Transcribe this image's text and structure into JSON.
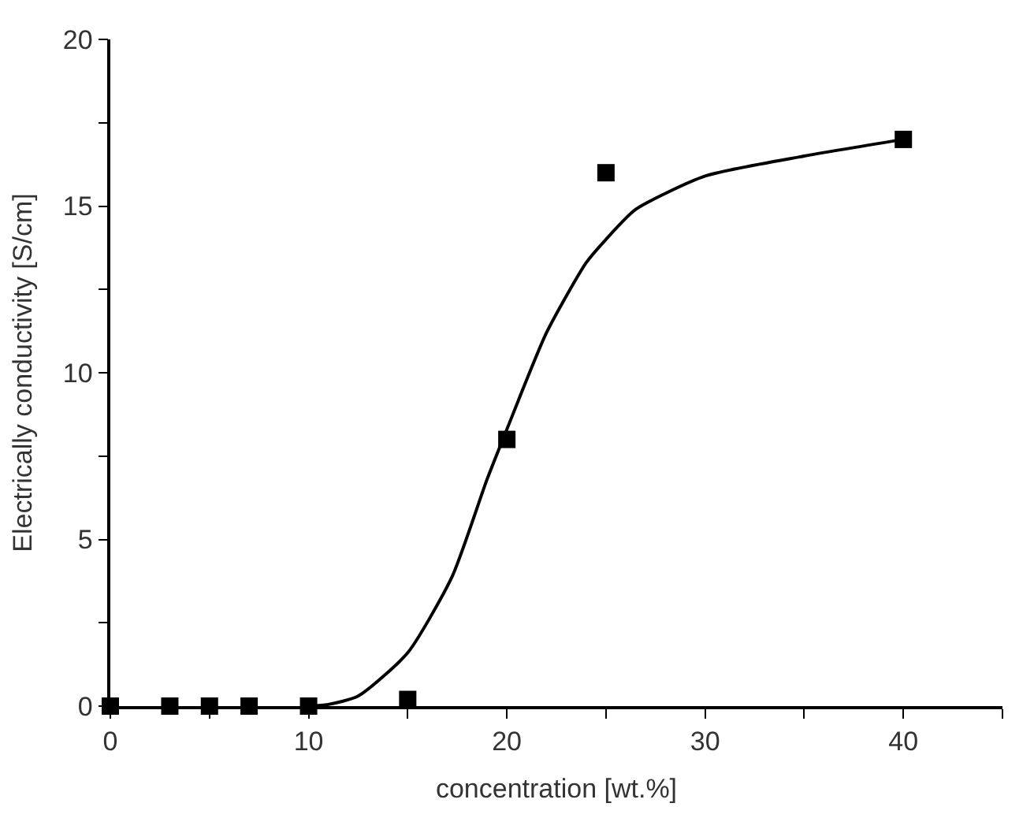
{
  "chart_data": {
    "type": "scatter",
    "xlabel": "concentration [wt.%]",
    "ylabel": "Electrically conductivity [S/cm]",
    "xlim": [
      0,
      45
    ],
    "ylim": [
      0,
      20
    ],
    "xticks": [
      0,
      {
        "value": 5,
        "label": null
      },
      10,
      {
        "value": 15,
        "label": null
      },
      20,
      {
        "value": 25,
        "label": null
      },
      30,
      {
        "value": 35,
        "label": null
      },
      40,
      {
        "value": 45,
        "label": null
      }
    ],
    "yticks": [
      0,
      {
        "value": 2.5,
        "label": null
      },
      5,
      {
        "value": 7.5,
        "label": null
      },
      10,
      {
        "value": 12.5,
        "label": null
      },
      15,
      {
        "value": 17.5,
        "label": null
      },
      20
    ],
    "marker": "square",
    "series": [
      {
        "color": "#000000",
        "x": [
          0,
          3,
          5,
          7,
          10,
          15,
          20,
          25,
          40
        ],
        "values": [
          0,
          0,
          0,
          0,
          0,
          0.2,
          8.0,
          16.0,
          17.0
        ]
      },
      {
        "type": "line",
        "color": "#000000",
        "marker": "none",
        "line_style": "solid",
        "x": [
          10,
          11,
          12.5,
          15,
          17.25,
          19,
          20,
          22,
          24,
          25,
          26.5,
          30,
          35,
          40
        ],
        "values": [
          0,
          0.05,
          0.3,
          1.6,
          3.9,
          6.8,
          8.3,
          11.2,
          13.3,
          14.0,
          14.9,
          15.9,
          16.5,
          17.0
        ]
      }
    ]
  }
}
